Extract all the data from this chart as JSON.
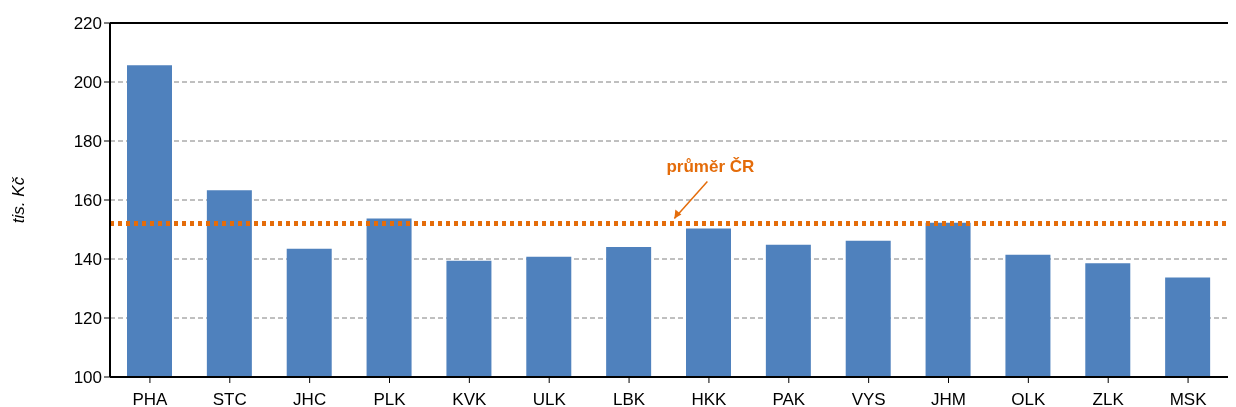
{
  "chart_data": {
    "type": "bar",
    "ylabel": "tis. Kč",
    "categories": [
      "PHA",
      "STC",
      "JHC",
      "PLK",
      "KVK",
      "ULK",
      "LBK",
      "HKK",
      "PAK",
      "VYS",
      "JHM",
      "OLK",
      "ZLK",
      "MSK"
    ],
    "values": [
      205.7,
      163.3,
      143.5,
      153.7,
      139.4,
      140.8,
      144.1,
      150.3,
      144.8,
      146.2,
      152.3,
      141.4,
      138.6,
      133.7
    ],
    "color": "#4f81bd",
    "ylim": [
      100,
      220
    ],
    "yticks": [
      100,
      120,
      140,
      160,
      180,
      200,
      220
    ],
    "grid": "y",
    "ref_lines": [
      {
        "axis": "y",
        "value": 152,
        "label": "průměr ČR",
        "color": "#e46c0a",
        "line_style": "dotted"
      }
    ]
  }
}
